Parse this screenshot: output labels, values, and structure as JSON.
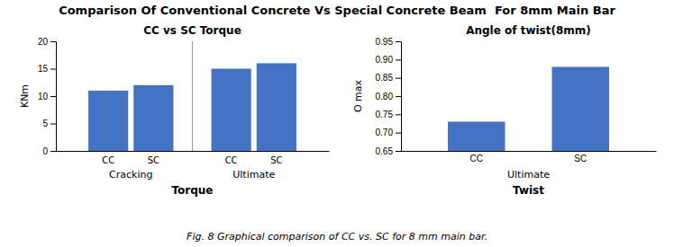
{
  "title": "Comparison Of Conventional Concrete Vs Special Concrete Beam  For 8mm Main Bar",
  "caption": "Fig. 8 Graphical comparison of CC vs. SC for 8 mm main bar.",
  "chart_data": [
    {
      "type": "bar",
      "title": "CC vs SC Torque",
      "xlabel": "Torque",
      "ylabel": "KNm",
      "categories": [
        "Cracking",
        "Ultimate"
      ],
      "series": [
        {
          "name": "CC",
          "values": [
            11,
            15
          ]
        },
        {
          "name": "SC",
          "values": [
            12,
            16
          ]
        }
      ],
      "color": "#4472C4",
      "ylim": [
        0,
        20
      ],
      "yticks": [
        0,
        5,
        10,
        15,
        20
      ],
      "grid": false
    },
    {
      "type": "bar",
      "title": "Angle of twist(8mm)",
      "xlabel": "Twist",
      "annotations": [
        "Ultimate"
      ],
      "ylabel": "O max",
      "categories": [
        "CC",
        "SC"
      ],
      "values": [
        0.73,
        0.88
      ],
      "color": "#4472C4",
      "ylim": [
        0.65,
        0.95
      ],
      "yticks": [
        0.65,
        {
          "value": 0.7,
          "label": "0.70"
        },
        0.75,
        {
          "value": 0.8,
          "label": "0.80"
        },
        0.85,
        {
          "value": 0.9,
          "label": "0.90"
        },
        0.95
      ],
      "grid": false
    }
  ]
}
